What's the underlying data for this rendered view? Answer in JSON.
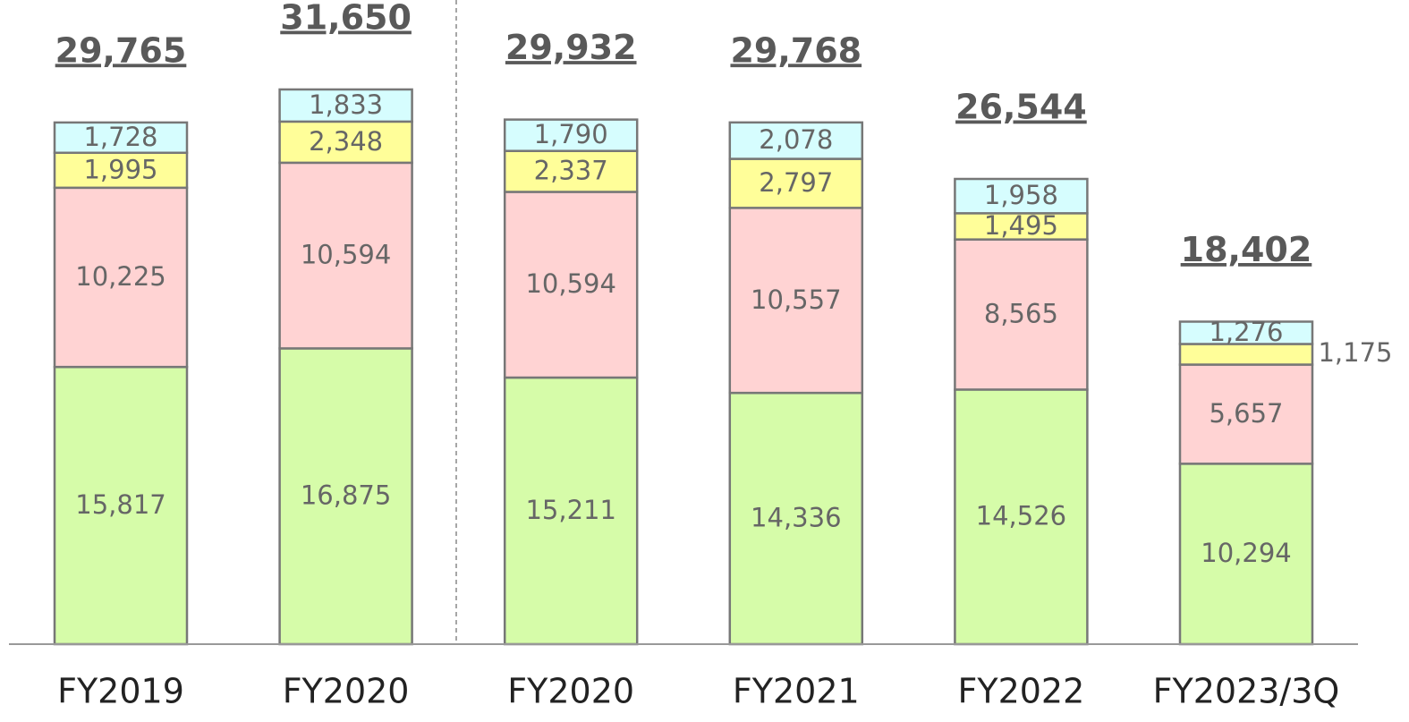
{
  "chart_data": {
    "type": "stacked-bar",
    "categories": [
      "FY2019",
      "FY2020",
      "FY2020",
      "FY2021",
      "FY2022",
      "FY2023/3Q"
    ],
    "series": [
      {
        "color": "#d6fca9",
        "values": [
          15817,
          16875,
          15211,
          14336,
          14526,
          10294
        ],
        "value_labels": [
          "15,817",
          "16,875",
          "15,211",
          "14,336",
          "14,526",
          "10,294"
        ]
      },
      {
        "color": "#ffd3d3",
        "values": [
          10225,
          10594,
          10594,
          10557,
          8565,
          5657
        ],
        "value_labels": [
          "10,225",
          "10,594",
          "10,594",
          "10,557",
          "8,565",
          "5,657"
        ]
      },
      {
        "color": "#fffe99",
        "values": [
          1995,
          2348,
          2337,
          2797,
          1495,
          1175
        ],
        "value_labels": [
          "1,995",
          "2,348",
          "2,337",
          "2,797",
          "1,495",
          "1,175"
        ]
      },
      {
        "color": "#d6fdfe",
        "values": [
          1728,
          1833,
          1790,
          2078,
          1958,
          1276
        ],
        "value_labels": [
          "1,728",
          "1,833",
          "1,790",
          "2,078",
          "1,958",
          "1,276"
        ]
      }
    ],
    "totals": [
      29765,
      31650,
      29932,
      29768,
      26544,
      18402
    ],
    "totals_labels": [
      "29,765",
      "31,650",
      "29,932",
      "29,768",
      "26,544",
      "18,402"
    ]
  }
}
